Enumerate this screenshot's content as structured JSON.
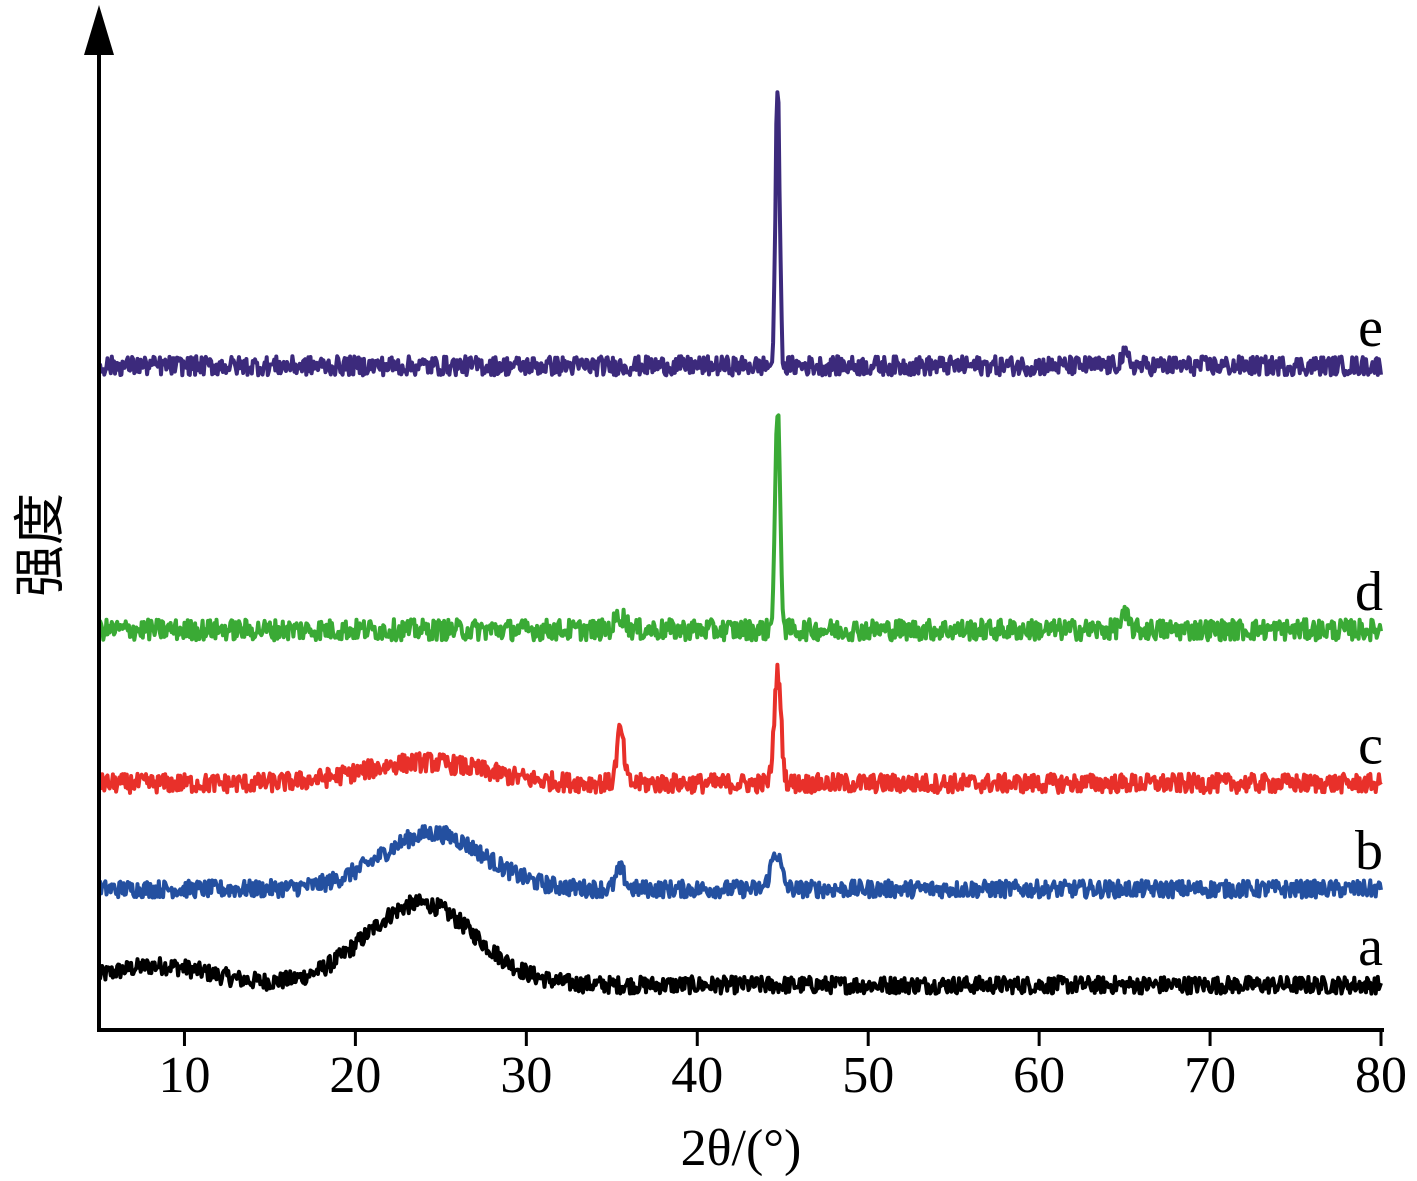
{
  "chart_data": {
    "type": "line",
    "title": "",
    "xlabel": "2θ/(°)",
    "ylabel": "强度",
    "xlim": [
      5,
      80
    ],
    "x_ticks": [
      10,
      20,
      30,
      40,
      50,
      60,
      70,
      80
    ],
    "y_ticks_shown": false,
    "grid": false,
    "legend": "labels at right end of each trace",
    "series": [
      {
        "name": "a",
        "color": "#000000",
        "baseline": 0.0,
        "noise": 0.9,
        "features": [
          {
            "kind": "hump",
            "center": 8.5,
            "width": 3.0,
            "height": 2.0
          },
          {
            "kind": "hump",
            "center": 23.8,
            "width": 3.2,
            "height": 8.5
          }
        ]
      },
      {
        "name": "b",
        "color": "#2450a0",
        "baseline": 10.0,
        "noise": 0.9,
        "features": [
          {
            "kind": "hump",
            "center": 24.5,
            "width": 3.0,
            "height": 5.8
          },
          {
            "kind": "peak",
            "center": 35.5,
            "width": 0.25,
            "height": 2.0
          },
          {
            "kind": "peak",
            "center": 44.6,
            "width": 0.3,
            "height": 3.8
          }
        ]
      },
      {
        "name": "c",
        "color": "#e8302a",
        "baseline": 21.0,
        "noise": 1.0,
        "features": [
          {
            "kind": "hump",
            "center": 24.0,
            "width": 3.5,
            "height": 2.2
          },
          {
            "kind": "peak",
            "center": 35.5,
            "width": 0.2,
            "height": 5.6
          },
          {
            "kind": "peak",
            "center": 44.7,
            "width": 0.2,
            "height": 11.5
          }
        ]
      },
      {
        "name": "d",
        "color": "#3aaa35",
        "baseline": 37.0,
        "noise": 1.1,
        "features": [
          {
            "kind": "peak",
            "center": 35.5,
            "width": 0.3,
            "height": 1.5
          },
          {
            "kind": "peak",
            "center": 44.7,
            "width": 0.15,
            "height": 22.5
          },
          {
            "kind": "peak",
            "center": 65.0,
            "width": 0.25,
            "height": 1.4
          }
        ]
      },
      {
        "name": "e",
        "color": "#3c2a7c",
        "baseline": 64.5,
        "noise": 1.0,
        "features": [
          {
            "kind": "peak",
            "center": 44.7,
            "width": 0.12,
            "height": 29.5
          },
          {
            "kind": "peak",
            "center": 65.0,
            "width": 0.25,
            "height": 1.0
          }
        ]
      }
    ]
  }
}
